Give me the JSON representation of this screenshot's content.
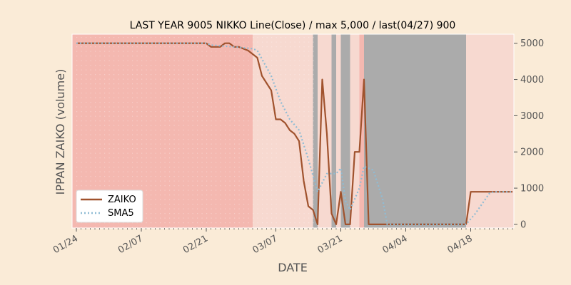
{
  "chart_data": {
    "type": "line",
    "title": "LAST YEAR 9005 NIKKO Line(Close) / max 5,000 / last(04/27) 900",
    "xlabel": "DATE",
    "ylabel": "IPPAN ZAIKO (volume)",
    "ylim": [
      -100,
      5250
    ],
    "y_ticks": [
      0,
      1000,
      2000,
      3000,
      4000,
      5000
    ],
    "x_ticks": [
      "01/24",
      "02/07",
      "02/21",
      "03/07",
      "03/21",
      "04/04",
      "04/18"
    ],
    "y_axis_side": "right",
    "grid": false,
    "legend_position": "lower-left",
    "colors": {
      "background": "#faebd7",
      "zaiko": "#a0522d",
      "sma5": "#8fbcd4",
      "shade_red": "#f4b8b0",
      "shade_light": "#f7d9d0",
      "shade_dark": "#ababab"
    },
    "series": [
      {
        "name": "ZAIKO",
        "style": "solid",
        "points": [
          [
            "01/24",
            5000
          ],
          [
            "02/21",
            5000
          ],
          [
            "02/22",
            4900
          ],
          [
            "02/24",
            4900
          ],
          [
            "02/25",
            5000
          ],
          [
            "02/26",
            5000
          ],
          [
            "02/27",
            4900
          ],
          [
            "02/28",
            4900
          ],
          [
            "03/01",
            4800
          ],
          [
            "03/03",
            4600
          ],
          [
            "03/04",
            4100
          ],
          [
            "03/06",
            3700
          ],
          [
            "03/07",
            2900
          ],
          [
            "03/08",
            2900
          ],
          [
            "03/09",
            2800
          ],
          [
            "03/10",
            2600
          ],
          [
            "03/11",
            2500
          ],
          [
            "03/12",
            2300
          ],
          [
            "03/13",
            1200
          ],
          [
            "03/14",
            500
          ],
          [
            "03/15",
            400
          ],
          [
            "03/16",
            0
          ],
          [
            "03/17",
            4000
          ],
          [
            "03/18",
            2500
          ],
          [
            "03/19",
            300
          ],
          [
            "03/20",
            0
          ],
          [
            "03/21",
            900
          ],
          [
            "03/22",
            0
          ],
          [
            "03/23",
            0
          ],
          [
            "03/24",
            2000
          ],
          [
            "03/25",
            2000
          ],
          [
            "03/26",
            4000
          ],
          [
            "03/27",
            0
          ],
          [
            "04/17",
            0
          ],
          [
            "04/18",
            900
          ],
          [
            "04/27",
            900
          ]
        ]
      },
      {
        "name": "SMA5",
        "style": "dotted",
        "points": [
          [
            "01/24",
            5000
          ],
          [
            "02/21",
            5000
          ],
          [
            "02/22",
            4950
          ],
          [
            "02/27",
            4900
          ],
          [
            "03/02",
            4850
          ],
          [
            "03/03",
            4800
          ],
          [
            "03/06",
            4100
          ],
          [
            "03/08",
            3400
          ],
          [
            "03/10",
            2900
          ],
          [
            "03/12",
            2600
          ],
          [
            "03/14",
            1800
          ],
          [
            "03/16",
            900
          ],
          [
            "03/18",
            1400
          ],
          [
            "03/20",
            1400
          ],
          [
            "03/21",
            1550
          ],
          [
            "03/22",
            650
          ],
          [
            "03/23",
            400
          ],
          [
            "03/25",
            1000
          ],
          [
            "03/26",
            1600
          ],
          [
            "03/28",
            1500
          ],
          [
            "03/30",
            700
          ],
          [
            "03/31",
            0
          ],
          [
            "04/17",
            0
          ],
          [
            "04/19",
            300
          ],
          [
            "04/22",
            850
          ],
          [
            "04/23",
            900
          ],
          [
            "04/27",
            900
          ]
        ]
      }
    ],
    "shaded_ranges": [
      {
        "start": "01/24",
        "end": "03/02",
        "color": "shade_red"
      },
      {
        "start": "03/02",
        "end": "03/15",
        "color": "shade_light"
      },
      {
        "start": "03/15",
        "end": "03/16",
        "color": "shade_dark"
      },
      {
        "start": "03/16",
        "end": "03/19",
        "color": "shade_light"
      },
      {
        "start": "03/19",
        "end": "03/20",
        "color": "shade_dark"
      },
      {
        "start": "03/20",
        "end": "03/21",
        "color": "shade_light"
      },
      {
        "start": "03/21",
        "end": "03/23",
        "color": "shade_dark"
      },
      {
        "start": "03/23",
        "end": "03/25",
        "color": "shade_light"
      },
      {
        "start": "03/25",
        "end": "03/26",
        "color": "shade_red"
      },
      {
        "start": "03/26",
        "end": "04/17",
        "color": "shade_dark"
      },
      {
        "start": "04/17",
        "end": "04/28",
        "color": "shade_light"
      }
    ]
  }
}
